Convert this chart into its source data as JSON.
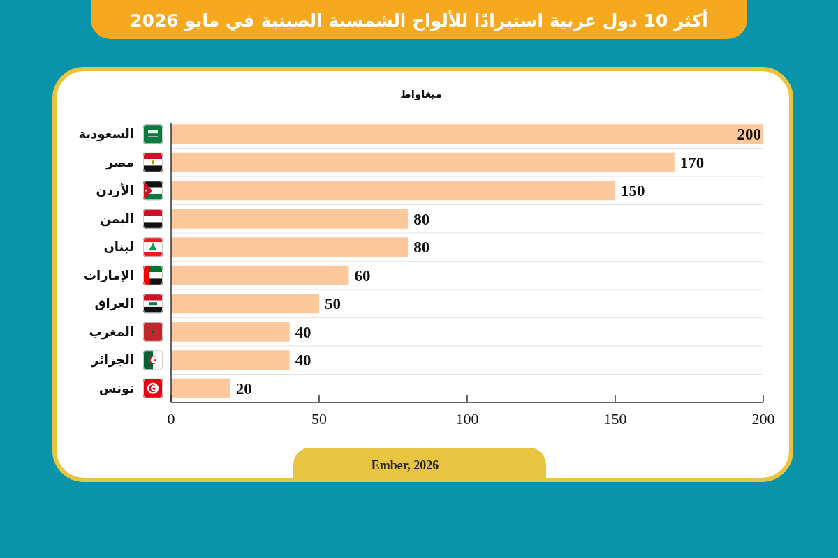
{
  "chart_data": {
    "type": "bar",
    "orientation": "horizontal",
    "title": "أكثر 10 دول عربية استيرادًا للألواح الشمسية الصينية في مايو 2026",
    "xlabel": "ميغاواط",
    "categories": [
      "السعودية",
      "مصر",
      "الأردن",
      "اليمن",
      "لبنان",
      "الإمارات",
      "العراق",
      "المغرب",
      "الجزائر",
      "تونس"
    ],
    "values": [
      200,
      170,
      150,
      80,
      80,
      60,
      50,
      40,
      40,
      20
    ],
    "color": "#fdc89b",
    "xlim": [
      0,
      200
    ],
    "xticks": [
      0,
      50,
      100,
      150,
      200
    ],
    "data_labels": true,
    "grid": "y",
    "annotations": [
      "Ember, 2026"
    ]
  }
}
